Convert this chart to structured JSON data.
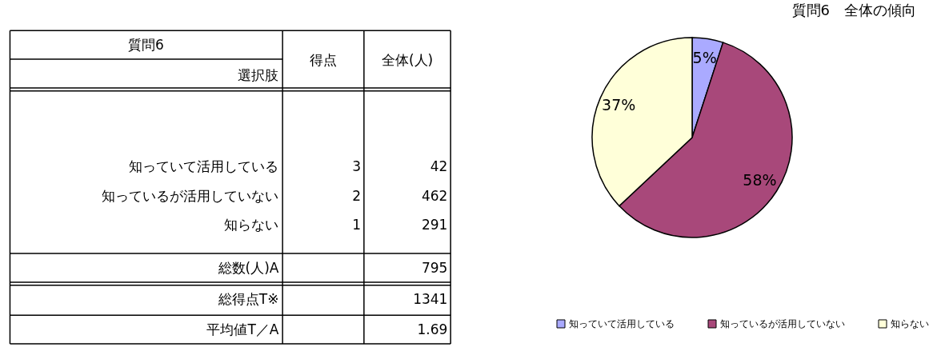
{
  "chart_data": [
    {
      "type": "other",
      "annotations": [
        "質問6",
        "得点",
        "全体(人)",
        "選択肢",
        "知っていて活用している",
        "3",
        "42",
        "知っているが活用していない",
        "2",
        "462",
        "知らない",
        "1",
        "291",
        "総数(人)A",
        "795",
        "総得点T※",
        "1341",
        "平均値T／A",
        "1.69"
      ]
    },
    {
      "type": "pie",
      "title": "質問6　全体の傾向",
      "categories": [
        "知っていて活用している",
        "知っているが活用していない",
        "知らない"
      ],
      "values": [
        5,
        58,
        37
      ],
      "colors": [
        "#aaaaff",
        "#a8487a",
        "#ffffd9"
      ],
      "value_labels": [
        "5%",
        "58%",
        "37%"
      ],
      "legend": "bottom"
    }
  ]
}
